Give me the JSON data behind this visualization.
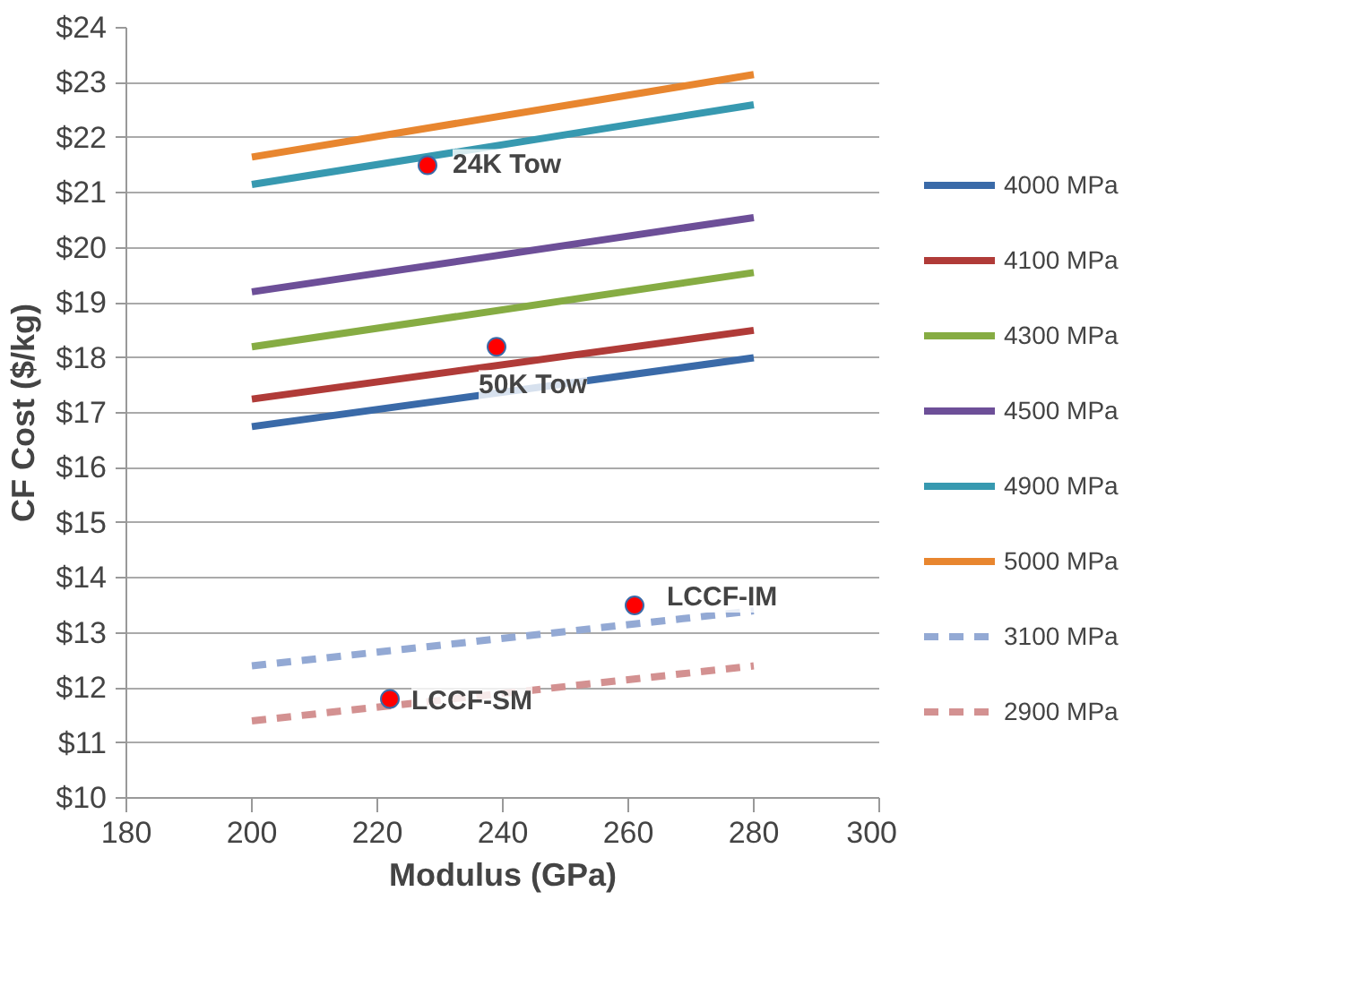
{
  "chart_data": {
    "type": "line",
    "xlabel": "Modulus (GPa)",
    "ylabel": "CF Cost ($/kg)",
    "xlim": [
      180,
      300
    ],
    "xticks": [
      180,
      200,
      220,
      240,
      260,
      280,
      300
    ],
    "ylim": [
      10,
      24
    ],
    "yticks": [
      {
        "value": 10,
        "label": "$10"
      },
      {
        "value": 11,
        "label": "$11"
      },
      {
        "value": 12,
        "label": "$12"
      },
      {
        "value": 13,
        "label": "$13"
      },
      {
        "value": 14,
        "label": "$14"
      },
      {
        "value": 15,
        "label": "$15"
      },
      {
        "value": 16,
        "label": "$16"
      },
      {
        "value": 17,
        "label": "$17"
      },
      {
        "value": 18,
        "label": "$18"
      },
      {
        "value": 19,
        "label": "$19"
      },
      {
        "value": 20,
        "label": "$20"
      },
      {
        "value": 21,
        "label": "$21"
      },
      {
        "value": 22,
        "label": "$22"
      },
      {
        "value": 23,
        "label": "$23"
      },
      {
        "value": 24,
        "label": "$24"
      }
    ],
    "grid": "y",
    "legend": "right",
    "x": [
      200,
      280
    ],
    "series": [
      {
        "name": "4000 MPa",
        "color": "#3a6aa8",
        "values": [
          16.75,
          18.0
        ]
      },
      {
        "name": "4100 MPa",
        "color": "#b03b38",
        "values": [
          17.25,
          18.5
        ]
      },
      {
        "name": "4300 MPa",
        "color": "#86ac43",
        "values": [
          18.2,
          19.55
        ]
      },
      {
        "name": "4500 MPa",
        "color": "#6d4f98",
        "values": [
          19.2,
          20.55
        ]
      },
      {
        "name": "4900 MPa",
        "color": "#3799b0",
        "values": [
          21.15,
          22.6
        ]
      },
      {
        "name": "5000 MPa",
        "color": "#e8862f",
        "values": [
          21.65,
          23.15
        ]
      },
      {
        "name": "3100 MPa",
        "color": "#93a9d4",
        "values": [
          12.4,
          13.4
        ],
        "line_style": "dashed"
      },
      {
        "name": "2900 MPa",
        "color": "#d39191",
        "values": [
          11.4,
          12.4
        ],
        "line_style": "dashed"
      },
      {
        "type": "scatter",
        "color": "#ff0000",
        "x": [
          228,
          239,
          261,
          222
        ],
        "values": [
          21.5,
          18.2,
          13.5,
          11.8
        ],
        "marker": "circle"
      }
    ],
    "annotations": [
      {
        "text": "24K Tow",
        "x": 228,
        "y": 21.5
      },
      {
        "text": "50K Tow",
        "x": 239,
        "y": 18.2
      },
      {
        "text": "LCCF-IM",
        "x": 261,
        "y": 13.5
      },
      {
        "text": "LCCF-SM",
        "x": 222,
        "y": 11.8
      }
    ]
  }
}
